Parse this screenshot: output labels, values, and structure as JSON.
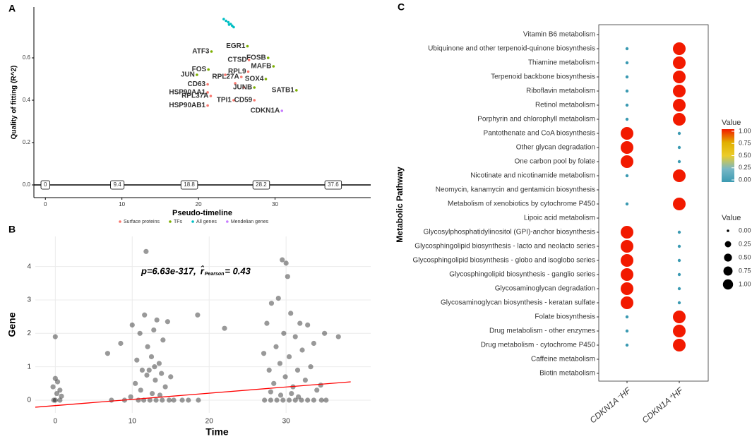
{
  "chart_data": [
    {
      "type": "scatter",
      "panel_label": "A",
      "xlabel": "Pseudo-timeline",
      "ylabel": "Quality of fitting (R^2)",
      "xlim": [
        -1.5,
        42.5
      ],
      "ylim": [
        -0.06,
        0.84
      ],
      "xticks": [
        0,
        10,
        20,
        30
      ],
      "yticks": [
        {
          "value": 0,
          "label": "0.0"
        },
        {
          "value": 0.2,
          "label": "0.2"
        },
        {
          "value": 0.4,
          "label": "0.4"
        },
        {
          "value": 0.6,
          "label": "0.6"
        }
      ],
      "timeline_marks": [
        0,
        9.4,
        18.8,
        28.2,
        37.6
      ],
      "legend_position": "bottom",
      "series": [
        {
          "name": "Surface proteins",
          "color": "#F8766D",
          "x": [
            26.6,
            26.5,
            25.6,
            21.2,
            21.2,
            21.6,
            24.6,
            27.3,
            21.2,
            23.5,
            24.8,
            25.9
          ],
          "y": [
            0.59,
            0.535,
            0.51,
            0.475,
            0.437,
            0.42,
            0.4,
            0.4,
            0.375,
            0.52,
            0.48,
            0.46
          ],
          "point_labels": [
            "CTSD",
            "RPL9",
            "RPL27A",
            "CD63",
            "HSP90AA1",
            "RPL37A",
            "TPI1",
            "CD59",
            "HSP90AB1",
            null,
            null,
            null
          ]
        },
        {
          "name": "TFs",
          "color": "#7CAE00",
          "x": [
            26.4,
            21.7,
            29.1,
            21.3,
            29.8,
            19.8,
            28.8,
            27.3,
            32.8
          ],
          "y": [
            0.655,
            0.63,
            0.6,
            0.545,
            0.56,
            0.52,
            0.5,
            0.46,
            0.447
          ],
          "point_labels": [
            "EGR1",
            "ATF3",
            "FOSB",
            "FOS",
            "MAFB",
            "JUN",
            "SOX4",
            "JUNB",
            "SATB1"
          ]
        },
        {
          "name": "All genes",
          "color": "#00BFC4",
          "x": [
            23.3,
            23.6,
            23.9,
            24.2,
            24.4,
            24.6,
            24.0
          ],
          "y": [
            0.783,
            0.775,
            0.768,
            0.76,
            0.752,
            0.745,
            0.757
          ]
        },
        {
          "name": "Mendelian genes",
          "color": "#C77CFF",
          "x": [
            30.9
          ],
          "y": [
            0.35
          ],
          "point_labels": [
            "CDKN1A"
          ]
        }
      ]
    },
    {
      "type": "scatter",
      "panel_label": "B",
      "xlabel": "Time",
      "ylabel": "Gene",
      "xlim": [
        -2.6,
        41
      ],
      "ylim": [
        -0.38,
        4.9
      ],
      "xticks": [
        0,
        10,
        20,
        30
      ],
      "yticks": [
        0,
        1,
        2,
        3,
        4
      ],
      "grid": true,
      "annotation": {
        "p_text": "p=6.63e-317,",
        "r_symbol": "r̂",
        "r_subscript": "Pearson",
        "r_text": "= 0.43"
      },
      "fit_line": {
        "color": "#FF0000",
        "x": [
          -2.6,
          38.4
        ],
        "y": [
          -0.21,
          0.55
        ]
      },
      "series": [
        {
          "color": "#000000",
          "x": [
            0,
            0,
            0.3,
            -0.3,
            0.6,
            0.2,
            0.8,
            0,
            0.6,
            -0.2,
            6.8,
            8.5,
            7.3,
            9,
            9.8,
            10,
            10.6,
            11,
            11.3,
            11.8,
            11.6,
            12,
            12.2,
            12.5,
            12.8,
            13,
            13.2,
            13.5,
            13.8,
            14,
            14.3,
            14.6,
            15,
            10.4,
            11.1,
            12.6,
            13.6,
            11.9,
            12.9,
            10.8,
            11.5,
            12.3,
            13.1,
            13.9,
            14.8,
            15.4,
            16.5,
            17.3,
            18.6,
            18.5,
            22,
            27.1,
            27.5,
            27.8,
            28.1,
            28.4,
            28.7,
            29,
            29.2,
            29.5,
            29.7,
            29.9,
            30,
            30.2,
            30.4,
            30.6,
            30.9,
            31.2,
            31.5,
            31.8,
            32.1,
            32.5,
            32.8,
            33.2,
            33.6,
            34,
            34.5,
            35,
            36.8,
            28,
            29.3,
            30.7,
            31.6,
            27.2,
            28,
            28.8,
            29.6,
            30.4,
            31.2,
            32,
            32.8,
            33.6,
            34.6,
            35.2
          ],
          "y": [
            1.9,
            0.65,
            0.55,
            0.4,
            0.3,
            0.2,
            0.12,
            0,
            0,
            0,
            1.4,
            1.7,
            0,
            0,
            0.1,
            2.25,
            1.2,
            2.0,
            0.9,
            4.45,
            2.55,
            1.6,
            0.9,
            1.3,
            2.1,
            0.6,
            2.4,
            1.1,
            0.8,
            1.8,
            0.4,
            2.35,
            0.7,
            0.5,
            0.3,
            0.2,
            0.15,
            0.75,
            1.0,
            0,
            0,
            0,
            0,
            0,
            0,
            0,
            0,
            0,
            0,
            2.55,
            2.15,
            1.4,
            2.3,
            0.9,
            2.9,
            0.5,
            1.6,
            3.05,
            1.1,
            4.2,
            2.0,
            0.7,
            4.1,
            3.7,
            1.3,
            2.6,
            0.4,
            1.9,
            0.9,
            2.3,
            1.5,
            0.6,
            2.25,
            1.0,
            1.7,
            0.3,
            0.45,
            2.0,
            1.9,
            0.25,
            0.15,
            0.2,
            0.1,
            0,
            0,
            0,
            0,
            0,
            0,
            0,
            0,
            0,
            0,
            0
          ]
        }
      ]
    },
    {
      "type": "dot",
      "panel_label": "C",
      "ylabel": "Metabolic Pathway",
      "categories": [
        "Vitamin B6 metabolism",
        "Ubiquinone and other terpenoid-quinone biosynthesis",
        "Thiamine metabolism",
        "Terpenoid backbone biosynthesis",
        "Riboflavin metabolism",
        "Retinol metabolism",
        "Porphyrin and chlorophyll metabolism",
        "Pantothenate and CoA biosynthesis",
        "Other glycan degradation",
        "One carbon pool by folate",
        "Nicotinate and nicotinamide metabolism",
        "Neomycin, kanamycin and gentamicin biosynthesis",
        "Metabolism of xenobiotics by cytochrome P450",
        "Lipoic acid metabolism",
        "Glycosylphosphatidylinositol (GPI)-anchor biosynthesis",
        "Glycosphingolipid biosynthesis - lacto and neolacto series",
        "Glycosphingolipid biosynthesis - globo and isoglobo series",
        "Glycosphingolipid biosynthesis - ganglio series",
        "Glycosaminoglycan degradation",
        "Glycosaminoglycan biosynthesis - keratan sulfate",
        "Folate biosynthesis",
        "Drug metabolism - other enzymes",
        "Drug metabolism - cytochrome P450",
        "Caffeine metabolism",
        "Biotin metabolism"
      ],
      "series": [
        {
          "name": "CDKN1A⁻HF",
          "values": [
            null,
            0,
            0,
            0,
            0,
            0,
            0,
            1,
            1,
            1,
            0,
            null,
            0,
            null,
            1,
            1,
            1,
            1,
            1,
            1,
            0,
            0,
            0,
            null,
            null
          ]
        },
        {
          "name": "CDKN1A⁺HF",
          "values": [
            null,
            1,
            1,
            1,
            1,
            1,
            1,
            0,
            0,
            0,
            1,
            null,
            1,
            null,
            0,
            0,
            0,
            0,
            0,
            0,
            1,
            1,
            1,
            null,
            null
          ]
        }
      ],
      "color_legend": {
        "title": "Value",
        "colors": [
          "#3B9AB2",
          "#78B7C5",
          "#EBCC2A",
          "#E1AF00",
          "#F21A00"
        ],
        "ticks": [
          {
            "value": 0,
            "label": "0.00"
          },
          {
            "value": 0.25,
            "label": "0.25"
          },
          {
            "value": 0.5,
            "label": "0.50"
          },
          {
            "value": 0.75,
            "label": "0.75"
          },
          {
            "value": 1,
            "label": "1.00"
          }
        ]
      },
      "size_legend": {
        "title": "Value",
        "values": [
          {
            "value": 0,
            "label": "0.00"
          },
          {
            "value": 0.25,
            "label": "0.25"
          },
          {
            "value": 0.5,
            "label": "0.50"
          },
          {
            "value": 0.75,
            "label": "0.75"
          },
          {
            "value": 1,
            "label": "1.00"
          }
        ]
      }
    }
  ]
}
